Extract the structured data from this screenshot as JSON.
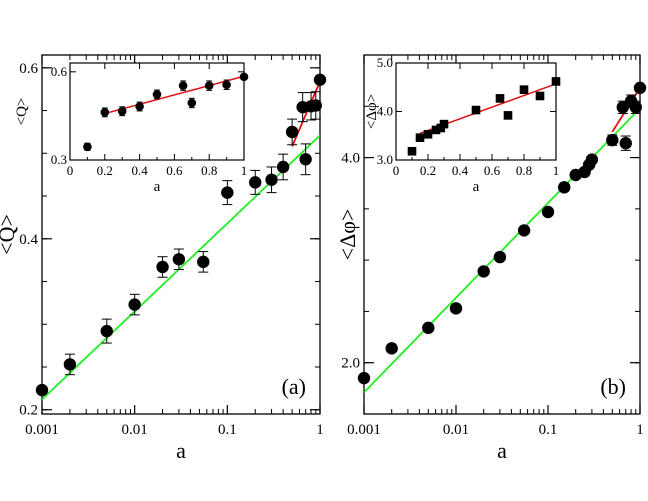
{
  "colors": {
    "marker": "#000000",
    "green_fit": "#22ee22",
    "red_fit": "#e01010",
    "axes": "#000000"
  },
  "chart_data": [
    {
      "type": "scatter",
      "panel_label": "(a)",
      "xscale": "log",
      "yscale": "linear",
      "xlabel": "a",
      "ylabel": "<Q>",
      "xlim": [
        0.001,
        1
      ],
      "ylim": [
        0.195,
        0.615
      ],
      "xticks": [
        0.001,
        0.01,
        0.1,
        1
      ],
      "xtick_labels": [
        "0.001",
        "0.01",
        "0.1",
        "1"
      ],
      "yticks": [
        0.2,
        0.4,
        0.6
      ],
      "ytick_labels": [
        "0.2",
        "0.4",
        "0.6"
      ],
      "marker": "circle",
      "points": [
        {
          "x": 0.001,
          "y": 0.223,
          "err": 0
        },
        {
          "x": 0.002,
          "y": 0.253,
          "err": 0.012
        },
        {
          "x": 0.005,
          "y": 0.292,
          "err": 0.014
        },
        {
          "x": 0.01,
          "y": 0.323,
          "err": 0.012
        },
        {
          "x": 0.02,
          "y": 0.367,
          "err": 0.012
        },
        {
          "x": 0.03,
          "y": 0.376,
          "err": 0.012
        },
        {
          "x": 0.055,
          "y": 0.373,
          "err": 0.012
        },
        {
          "x": 0.1,
          "y": 0.454,
          "err": 0.014
        },
        {
          "x": 0.2,
          "y": 0.466,
          "err": 0.014
        },
        {
          "x": 0.3,
          "y": 0.469,
          "err": 0.015
        },
        {
          "x": 0.4,
          "y": 0.484,
          "err": 0.015
        },
        {
          "x": 0.5,
          "y": 0.525,
          "err": 0.015
        },
        {
          "x": 0.65,
          "y": 0.554,
          "err": 0.017
        },
        {
          "x": 0.7,
          "y": 0.493,
          "err": 0.018
        },
        {
          "x": 0.8,
          "y": 0.555,
          "err": 0.016
        },
        {
          "x": 0.9,
          "y": 0.556,
          "err": 0.016
        },
        {
          "x": 1.0,
          "y": 0.586,
          "err": 0
        }
      ],
      "fits": [
        {
          "name": "green",
          "color": "green_fit",
          "x": [
            0.001,
            1.0
          ],
          "y": [
            0.212,
            0.521
          ]
        },
        {
          "name": "red",
          "color": "red_fit",
          "x": [
            0.5,
            1.0
          ],
          "y": [
            0.508,
            0.584
          ]
        }
      ],
      "inset": {
        "type": "scatter",
        "xscale": "linear",
        "yscale": "linear",
        "xlabel": "a",
        "ylabel": "<Q>",
        "xlim": [
          0,
          1
        ],
        "ylim": [
          0.3,
          0.63
        ],
        "xticks": [
          0,
          0.2,
          0.4,
          0.6,
          0.8,
          1
        ],
        "xtick_labels": [
          "0",
          "0.2",
          "0.4",
          "0.6",
          "0.8",
          "1"
        ],
        "yticks": [
          0.3,
          0.6
        ],
        "ytick_labels": [
          "0.3",
          "0.6"
        ],
        "marker": "circle",
        "points": [
          {
            "x": 0.1,
            "y": 0.345,
            "err": 0.012
          },
          {
            "x": 0.2,
            "y": 0.462,
            "err": 0.015
          },
          {
            "x": 0.3,
            "y": 0.466,
            "err": 0.015
          },
          {
            "x": 0.4,
            "y": 0.482,
            "err": 0.015
          },
          {
            "x": 0.5,
            "y": 0.523,
            "err": 0.015
          },
          {
            "x": 0.65,
            "y": 0.553,
            "err": 0.016
          },
          {
            "x": 0.7,
            "y": 0.494,
            "err": 0.016
          },
          {
            "x": 0.8,
            "y": 0.553,
            "err": 0.016
          },
          {
            "x": 0.9,
            "y": 0.556,
            "err": 0.016
          },
          {
            "x": 1.0,
            "y": 0.583,
            "err": 0
          }
        ],
        "fits": [
          {
            "name": "red",
            "color": "red_fit",
            "x": [
              0.2,
              1.0
            ],
            "y": [
              0.458,
              0.585
            ]
          }
        ]
      }
    },
    {
      "type": "scatter",
      "panel_label": "(b)",
      "xscale": "log",
      "yscale": "linear",
      "xlabel": "a",
      "ylabel": "<Δφ>",
      "xlim": [
        0.001,
        1
      ],
      "ylim": [
        1.5,
        5.0
      ],
      "xticks": [
        0.001,
        0.01,
        0.1,
        1
      ],
      "xtick_labels": [
        "0.001",
        "0.01",
        "0.1",
        "1"
      ],
      "yticks": [
        2.0,
        4.0
      ],
      "ytick_labels": [
        "2.0",
        "4.0"
      ],
      "marker": "circle",
      "points": [
        {
          "x": 0.001,
          "y": 1.85,
          "err": 0
        },
        {
          "x": 0.002,
          "y": 2.14,
          "err": 0
        },
        {
          "x": 0.005,
          "y": 2.34,
          "err": 0
        },
        {
          "x": 0.01,
          "y": 2.53,
          "err": 0
        },
        {
          "x": 0.02,
          "y": 2.89,
          "err": 0
        },
        {
          "x": 0.03,
          "y": 3.03,
          "err": 0
        },
        {
          "x": 0.055,
          "y": 3.29,
          "err": 0
        },
        {
          "x": 0.1,
          "y": 3.47,
          "err": 0
        },
        {
          "x": 0.15,
          "y": 3.71,
          "err": 0
        },
        {
          "x": 0.2,
          "y": 3.83,
          "err": 0
        },
        {
          "x": 0.25,
          "y": 3.86,
          "err": 0
        },
        {
          "x": 0.28,
          "y": 3.93,
          "err": 0
        },
        {
          "x": 0.3,
          "y": 3.98,
          "err": 0
        },
        {
          "x": 0.5,
          "y": 4.17,
          "err": 0.05
        },
        {
          "x": 0.65,
          "y": 4.49,
          "err": 0.06
        },
        {
          "x": 0.7,
          "y": 4.14,
          "err": 0.07
        },
        {
          "x": 0.8,
          "y": 4.55,
          "err": 0.06
        },
        {
          "x": 0.9,
          "y": 4.49,
          "err": 0.06
        },
        {
          "x": 1.0,
          "y": 4.68,
          "err": 0
        }
      ],
      "fits": [
        {
          "name": "green",
          "color": "green_fit",
          "x": [
            0.001,
            1.0
          ],
          "y": [
            1.71,
            4.48
          ]
        },
        {
          "name": "red",
          "color": "red_fit",
          "x": [
            0.5,
            1.0
          ],
          "y": [
            4.25,
            4.68
          ]
        }
      ],
      "inset": {
        "type": "scatter",
        "xscale": "linear",
        "yscale": "linear",
        "xlabel": "a",
        "ylabel": "<Δφ>",
        "xlim": [
          0,
          1
        ],
        "ylim": [
          3.0,
          5.0
        ],
        "xticks": [
          0,
          0.2,
          0.4,
          0.6,
          0.8,
          1
        ],
        "xtick_labels": [
          "0",
          "0.2",
          "0.4",
          "0.6",
          "0.8",
          "1"
        ],
        "yticks": [
          3.0,
          4.0,
          5.0
        ],
        "ytick_labels": [
          "3.0",
          "4.0",
          "5.0"
        ],
        "marker": "square",
        "points": [
          {
            "x": 0.1,
            "y": 3.18,
            "err": 0
          },
          {
            "x": 0.15,
            "y": 3.46,
            "err": 0
          },
          {
            "x": 0.2,
            "y": 3.53,
            "err": 0
          },
          {
            "x": 0.25,
            "y": 3.62,
            "err": 0
          },
          {
            "x": 0.28,
            "y": 3.66,
            "err": 0
          },
          {
            "x": 0.3,
            "y": 3.74,
            "err": 0
          },
          {
            "x": 0.5,
            "y": 4.03,
            "err": 0
          },
          {
            "x": 0.65,
            "y": 4.27,
            "err": 0
          },
          {
            "x": 0.7,
            "y": 3.92,
            "err": 0.06
          },
          {
            "x": 0.8,
            "y": 4.45,
            "err": 0
          },
          {
            "x": 0.9,
            "y": 4.32,
            "err": 0.06
          },
          {
            "x": 1.0,
            "y": 4.62,
            "err": 0.05
          }
        ],
        "fits": [
          {
            "name": "red",
            "color": "red_fit",
            "x": [
              0.15,
              1.0
            ],
            "y": [
              3.55,
              4.57
            ]
          }
        ]
      }
    }
  ]
}
